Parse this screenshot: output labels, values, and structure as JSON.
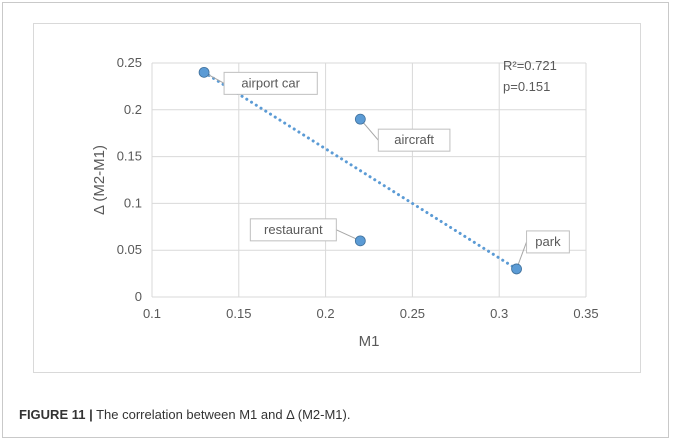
{
  "caption": {
    "figure_number": "FIGURE 11 |",
    "text": "The correlation between M1 and Δ (M2-M1)."
  },
  "colors": {
    "point": "#5b9bd5",
    "trendline": "#5b9bd5",
    "grid": "#d9d9d9",
    "text": "#595959"
  },
  "chart_data": {
    "type": "scatter",
    "xlabel": "M1",
    "ylabel": "Δ (M2-M1)",
    "xlim": [
      0.1,
      0.35
    ],
    "ylim": [
      0,
      0.25
    ],
    "x_ticks": [
      0.1,
      0.15,
      0.2,
      0.25,
      0.3,
      0.35
    ],
    "x_tick_labels": [
      "0.1",
      "0.15",
      "0.2",
      "0.25",
      "0.3",
      "0.35"
    ],
    "y_ticks": [
      0,
      0.05,
      0.1,
      0.15,
      0.2,
      0.25
    ],
    "y_tick_labels": [
      "0",
      "0.05",
      "0.1",
      "0.15",
      "0.2",
      "0.25"
    ],
    "grid": true,
    "points": [
      {
        "label": "airport car",
        "x": 0.13,
        "y": 0.24
      },
      {
        "label": "aircraft",
        "x": 0.22,
        "y": 0.19
      },
      {
        "label": "restaurant",
        "x": 0.22,
        "y": 0.06
      },
      {
        "label": "park",
        "x": 0.31,
        "y": 0.03
      }
    ],
    "trendline": {
      "type": "linear",
      "style": "dotted",
      "x_range": [
        0.13,
        0.31
      ],
      "y_at_start": 0.24,
      "y_at_end": 0.03
    },
    "annotations": [
      "R²=0.721",
      "p=0.151"
    ]
  }
}
